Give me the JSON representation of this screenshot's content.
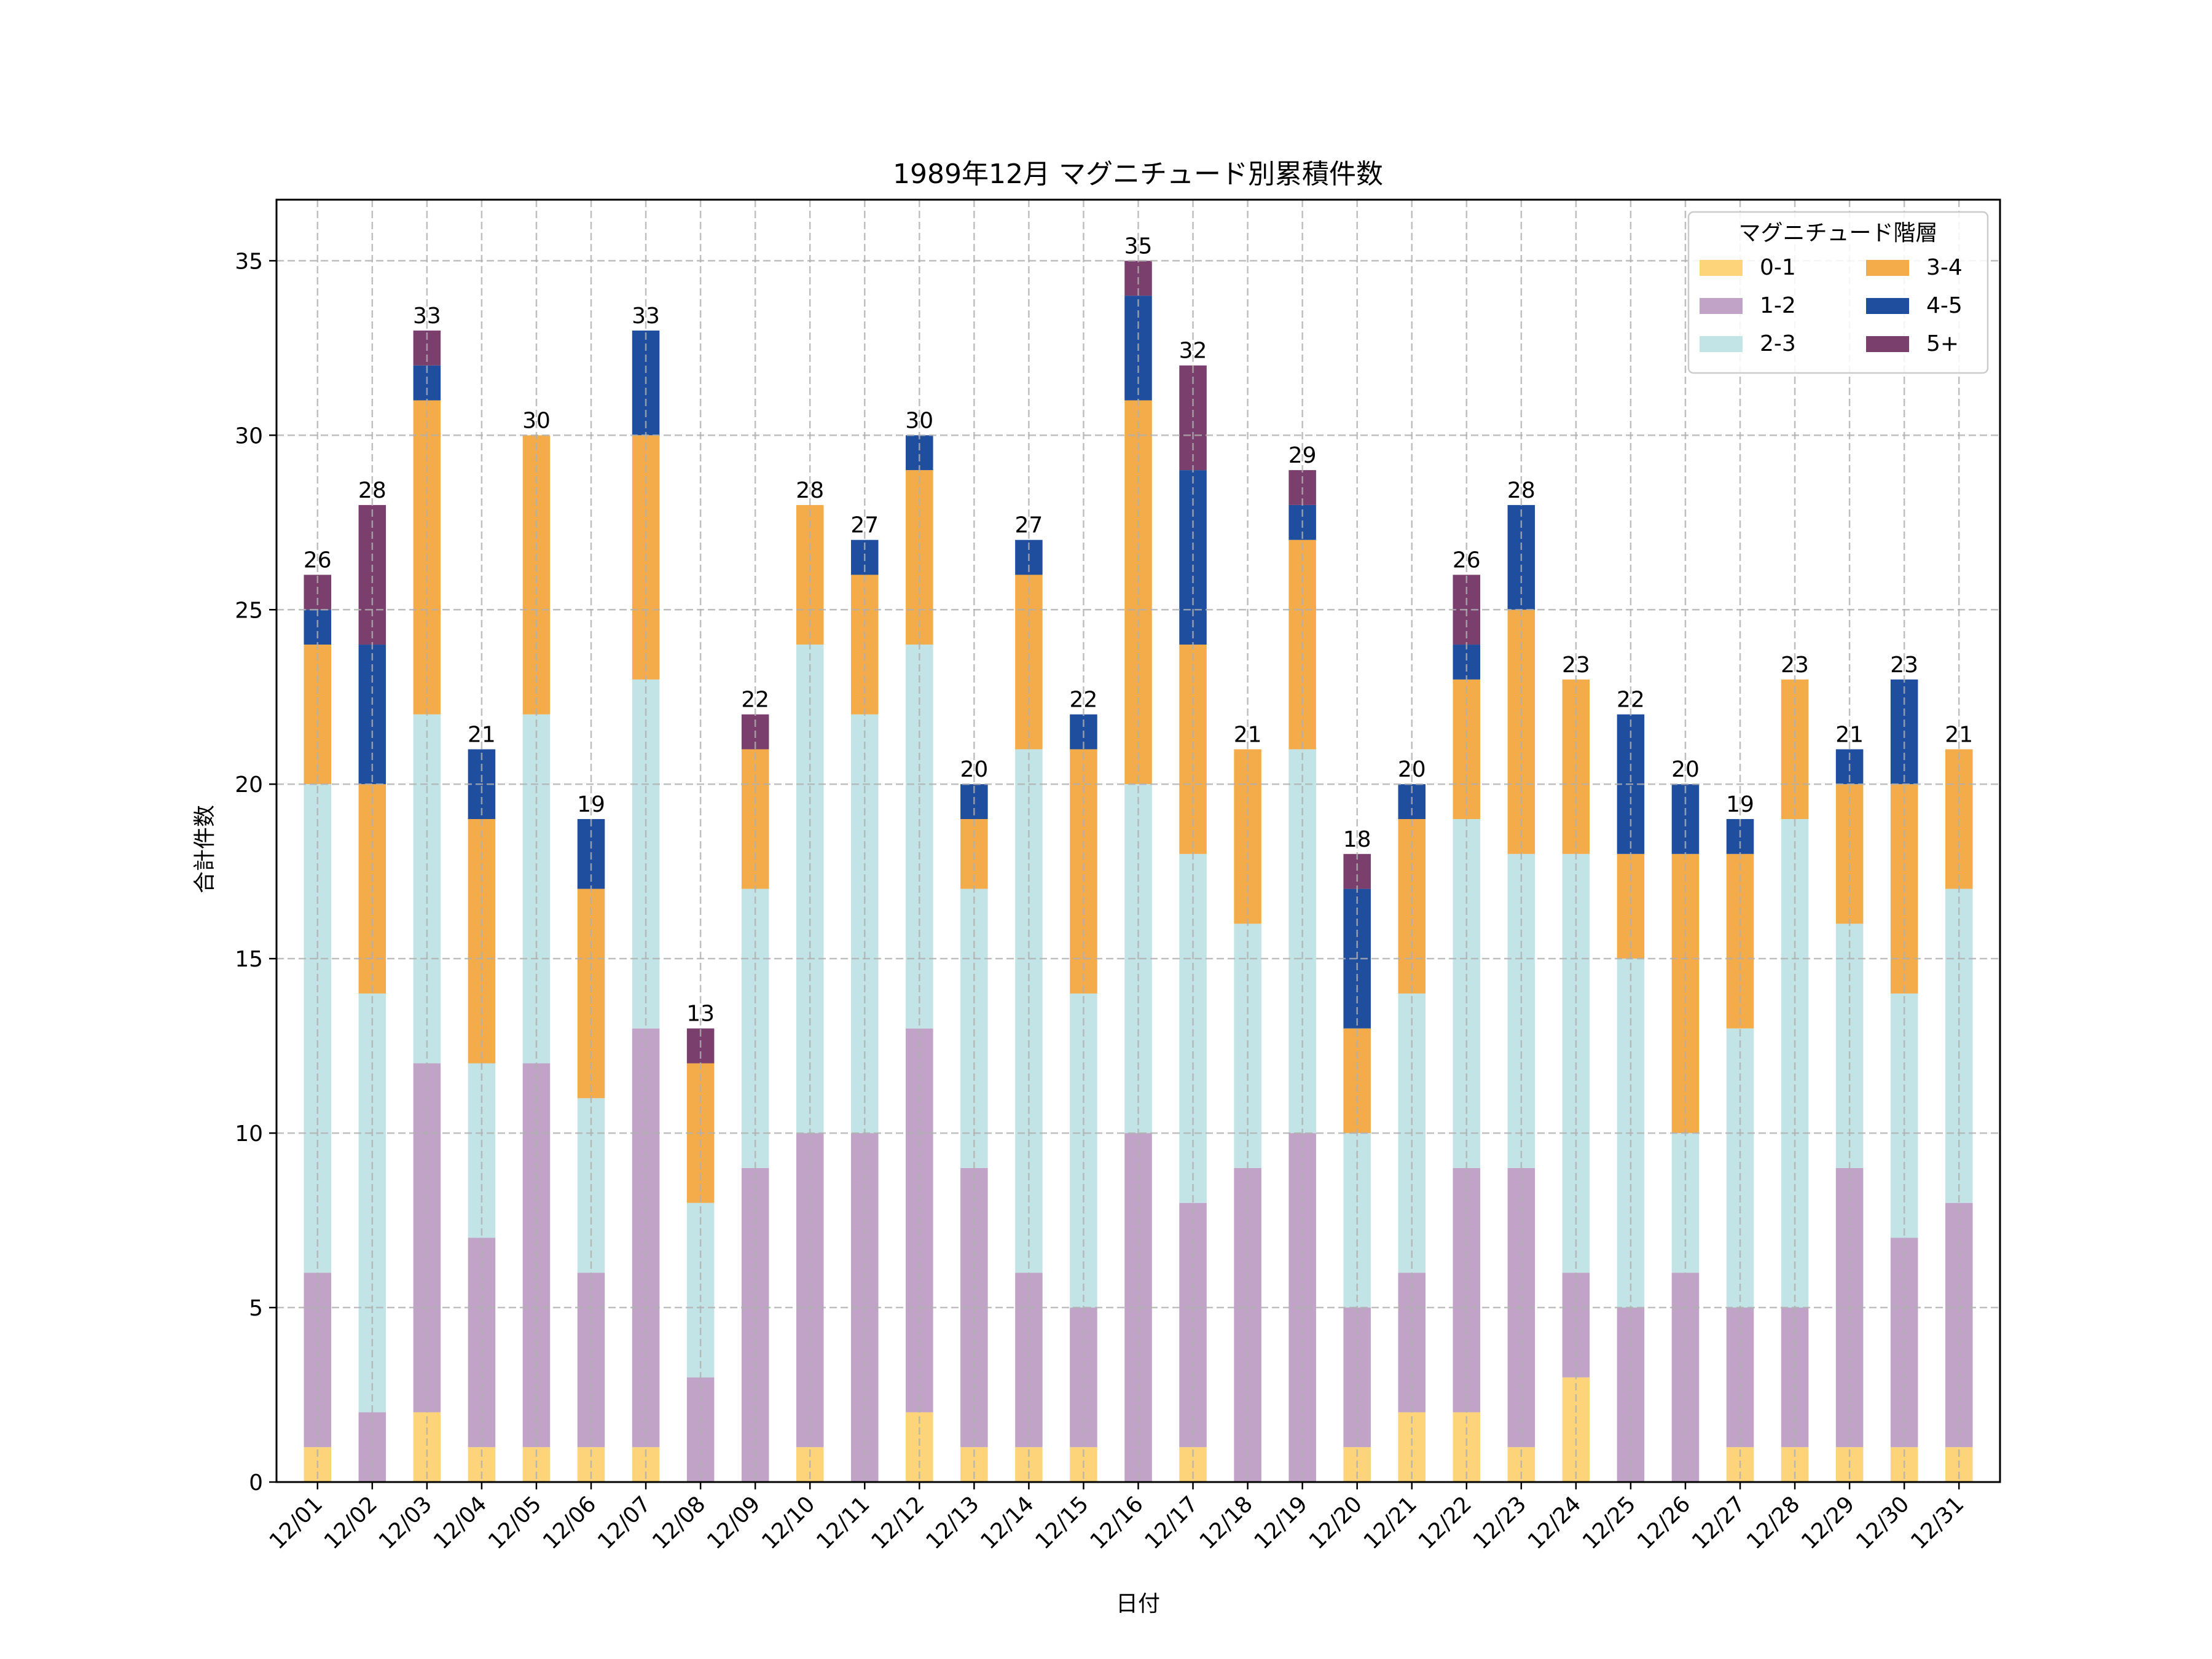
{
  "chart_data": {
    "type": "bar",
    "stacked": true,
    "title": "1989年12月 マグニチュード別累積件数",
    "xlabel": "日付",
    "ylabel": "合計件数",
    "ylim": [
      0,
      36.75
    ],
    "yticks": [
      0,
      5,
      10,
      15,
      20,
      25,
      30,
      35
    ],
    "grid": true,
    "legend_title": "マグニチュード階層",
    "legend_position": "top-right",
    "categories": [
      "12/01",
      "12/02",
      "12/03",
      "12/04",
      "12/05",
      "12/06",
      "12/07",
      "12/08",
      "12/09",
      "12/10",
      "12/11",
      "12/12",
      "12/13",
      "12/14",
      "12/15",
      "12/16",
      "12/17",
      "12/18",
      "12/19",
      "12/20",
      "12/21",
      "12/22",
      "12/23",
      "12/24",
      "12/25",
      "12/26",
      "12/27",
      "12/28",
      "12/29",
      "12/30",
      "12/31"
    ],
    "series": [
      {
        "name": "0-1",
        "color": "#FDD47A",
        "values": [
          1,
          0,
          2,
          1,
          1,
          1,
          1,
          0,
          0,
          1,
          0,
          2,
          1,
          1,
          1,
          0,
          1,
          0,
          0,
          1,
          2,
          2,
          1,
          3,
          0,
          0,
          1,
          1,
          1,
          1,
          1
        ]
      },
      {
        "name": "1-2",
        "color": "#C0A3C7",
        "values": [
          5,
          2,
          10,
          6,
          11,
          5,
          12,
          3,
          9,
          9,
          10,
          11,
          8,
          5,
          4,
          10,
          7,
          9,
          10,
          4,
          4,
          7,
          8,
          3,
          5,
          6,
          4,
          4,
          8,
          6,
          7
        ]
      },
      {
        "name": "2-3",
        "color": "#C3E4E6",
        "values": [
          14,
          12,
          10,
          5,
          10,
          5,
          10,
          5,
          8,
          14,
          12,
          11,
          8,
          15,
          9,
          10,
          10,
          7,
          11,
          5,
          8,
          10,
          9,
          12,
          10,
          4,
          8,
          14,
          7,
          7,
          9
        ]
      },
      {
        "name": "3-4",
        "color": "#F4AC4A",
        "values": [
          4,
          6,
          9,
          7,
          8,
          6,
          7,
          4,
          4,
          4,
          4,
          5,
          2,
          5,
          7,
          11,
          6,
          5,
          6,
          3,
          5,
          4,
          7,
          5,
          3,
          8,
          5,
          4,
          4,
          6,
          4
        ]
      },
      {
        "name": "4-5",
        "color": "#1F4E9E",
        "values": [
          1,
          4,
          1,
          2,
          0,
          2,
          3,
          0,
          0,
          0,
          1,
          1,
          1,
          1,
          1,
          3,
          5,
          0,
          1,
          4,
          1,
          1,
          3,
          0,
          4,
          2,
          1,
          0,
          1,
          3,
          0
        ]
      },
      {
        "name": "5+",
        "color": "#7B3F6E",
        "values": [
          1,
          4,
          1,
          0,
          0,
          0,
          0,
          1,
          1,
          0,
          0,
          0,
          0,
          0,
          0,
          1,
          3,
          0,
          1,
          1,
          0,
          2,
          0,
          0,
          0,
          0,
          0,
          0,
          0,
          0,
          0
        ]
      }
    ],
    "totals": [
      26,
      28,
      33,
      21,
      30,
      19,
      33,
      13,
      22,
      28,
      27,
      30,
      20,
      27,
      22,
      35,
      32,
      21,
      29,
      18,
      20,
      26,
      28,
      23,
      22,
      20,
      19,
      23,
      21,
      23,
      21
    ]
  }
}
